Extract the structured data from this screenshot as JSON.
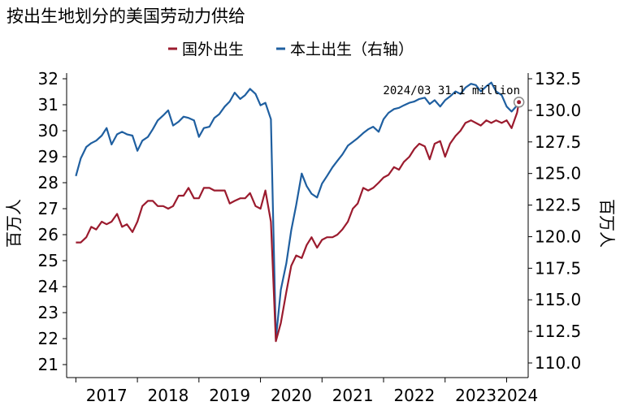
{
  "chart_data": {
    "type": "line",
    "title": "按出生地划分的美国劳动力供给",
    "y_left": {
      "label": "百万人",
      "ylim": [
        21,
        32
      ],
      "ticks": [
        "21",
        "22",
        "23",
        "24",
        "25",
        "26",
        "27",
        "28",
        "29",
        "30",
        "31",
        "32"
      ]
    },
    "y_right": {
      "label": "百万人",
      "ylim": [
        110,
        132.5
      ],
      "ticks": [
        "110.0",
        "112.5",
        "115.0",
        "117.5",
        "120.0",
        "122.5",
        "125.0",
        "127.5",
        "130.0",
        "132.5"
      ]
    },
    "x_axis": {
      "ticks": [
        "2017",
        "2018",
        "2019",
        "2020",
        "2021",
        "2022",
        "2023",
        "2024"
      ],
      "range": [
        2016.85,
        2024.35
      ]
    },
    "legend": {
      "placement": "top",
      "entries": [
        "国外出生",
        "本土出生（右轴）"
      ]
    },
    "annotation": {
      "text": "2024/03 31.1 million",
      "x": 2024.2,
      "y": 31.1
    },
    "colors": {
      "foreign": "#9b1b2e",
      "native": "#1f5fa0"
    },
    "series": [
      {
        "name": "国外出生",
        "axis": "left",
        "x": [
          2017.0,
          2017.08,
          2017.17,
          2017.25,
          2017.33,
          2017.42,
          2017.5,
          2017.58,
          2017.67,
          2017.75,
          2017.83,
          2017.92,
          2018.0,
          2018.08,
          2018.17,
          2018.25,
          2018.33,
          2018.42,
          2018.5,
          2018.58,
          2018.67,
          2018.75,
          2018.83,
          2018.92,
          2019.0,
          2019.08,
          2019.17,
          2019.25,
          2019.33,
          2019.42,
          2019.5,
          2019.58,
          2019.67,
          2019.75,
          2019.83,
          2019.92,
          2020.0,
          2020.08,
          2020.17,
          2020.25,
          2020.33,
          2020.42,
          2020.5,
          2020.58,
          2020.67,
          2020.75,
          2020.83,
          2020.92,
          2021.0,
          2021.08,
          2021.17,
          2021.25,
          2021.33,
          2021.42,
          2021.5,
          2021.58,
          2021.67,
          2021.75,
          2021.83,
          2021.92,
          2022.0,
          2022.08,
          2022.17,
          2022.25,
          2022.33,
          2022.42,
          2022.5,
          2022.58,
          2022.67,
          2022.75,
          2022.83,
          2022.92,
          2023.0,
          2023.08,
          2023.17,
          2023.25,
          2023.33,
          2023.42,
          2023.5,
          2023.58,
          2023.67,
          2023.75,
          2023.83,
          2023.92,
          2024.0,
          2024.08,
          2024.17,
          2024.2
        ],
        "values": [
          25.7,
          25.7,
          25.9,
          26.3,
          26.2,
          26.5,
          26.4,
          26.5,
          26.8,
          26.3,
          26.4,
          26.1,
          26.5,
          27.1,
          27.3,
          27.3,
          27.1,
          27.1,
          27.0,
          27.1,
          27.5,
          27.5,
          27.8,
          27.4,
          27.4,
          27.8,
          27.8,
          27.7,
          27.7,
          27.7,
          27.2,
          27.3,
          27.4,
          27.4,
          27.6,
          27.1,
          27.0,
          27.7,
          26.5,
          21.9,
          22.6,
          23.8,
          24.8,
          25.2,
          25.1,
          25.6,
          25.9,
          25.5,
          25.8,
          25.9,
          25.9,
          26.0,
          26.2,
          26.5,
          27.0,
          27.2,
          27.8,
          27.7,
          27.8,
          28.0,
          28.2,
          28.3,
          28.6,
          28.5,
          28.8,
          29.0,
          29.3,
          29.5,
          29.4,
          28.9,
          29.5,
          29.6,
          29.0,
          29.5,
          29.8,
          30.0,
          30.3,
          30.4,
          30.3,
          30.2,
          30.4,
          30.3,
          30.4,
          30.3,
          30.4,
          30.1,
          30.7,
          31.1
        ]
      },
      {
        "name": "本土出生（右轴）",
        "axis": "right",
        "x": [
          2017.0,
          2017.08,
          2017.17,
          2017.25,
          2017.33,
          2017.42,
          2017.5,
          2017.58,
          2017.67,
          2017.75,
          2017.83,
          2017.92,
          2018.0,
          2018.08,
          2018.17,
          2018.25,
          2018.33,
          2018.42,
          2018.5,
          2018.58,
          2018.67,
          2018.75,
          2018.83,
          2018.92,
          2019.0,
          2019.08,
          2019.17,
          2019.25,
          2019.33,
          2019.42,
          2019.5,
          2019.58,
          2019.67,
          2019.75,
          2019.83,
          2019.92,
          2020.0,
          2020.08,
          2020.17,
          2020.25,
          2020.33,
          2020.42,
          2020.5,
          2020.58,
          2020.67,
          2020.75,
          2020.83,
          2020.92,
          2021.0,
          2021.08,
          2021.17,
          2021.25,
          2021.33,
          2021.42,
          2021.5,
          2021.58,
          2021.67,
          2021.75,
          2021.83,
          2021.92,
          2022.0,
          2022.08,
          2022.17,
          2022.25,
          2022.33,
          2022.42,
          2022.5,
          2022.58,
          2022.67,
          2022.75,
          2022.83,
          2022.92,
          2023.0,
          2023.08,
          2023.17,
          2023.25,
          2023.33,
          2023.42,
          2023.5,
          2023.58,
          2023.67,
          2023.75,
          2023.83,
          2023.92,
          2024.0,
          2024.08,
          2024.17,
          2024.2
        ],
        "values": [
          124.8,
          126.2,
          127.1,
          127.4,
          127.6,
          128.0,
          128.6,
          127.3,
          128.1,
          128.3,
          128.1,
          128.0,
          126.8,
          127.6,
          127.9,
          128.5,
          129.2,
          129.6,
          130.0,
          128.8,
          129.1,
          129.5,
          129.4,
          129.2,
          127.9,
          128.6,
          128.7,
          129.4,
          129.7,
          130.3,
          130.7,
          131.4,
          130.9,
          131.2,
          131.7,
          131.3,
          130.4,
          130.6,
          129.3,
          111.9,
          115.8,
          117.9,
          120.5,
          122.5,
          125.0,
          124.0,
          123.4,
          123.1,
          124.2,
          124.8,
          125.5,
          126.0,
          126.5,
          127.2,
          127.5,
          127.8,
          128.2,
          128.5,
          128.7,
          128.3,
          129.3,
          129.8,
          130.1,
          130.2,
          130.4,
          130.6,
          130.7,
          130.9,
          131.0,
          130.5,
          130.8,
          130.3,
          130.8,
          131.1,
          131.5,
          131.3,
          131.8,
          132.1,
          132.0,
          131.5,
          131.9,
          132.2,
          131.5,
          131.2,
          130.3,
          129.9,
          130.4,
          130.8
        ]
      }
    ]
  }
}
